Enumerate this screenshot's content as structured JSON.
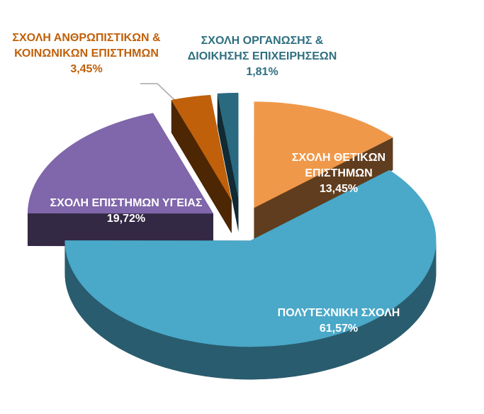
{
  "chart_data": {
    "type": "pie",
    "categories": [
      "ΣΧΟΛΗ ΘΕΤΙΚΩΝ ΕΠΙΣΤΗΜΩΝ",
      "ΠΟΛΥΤΕΧΝΙΚΗ ΣΧΟΛΗ",
      "ΣΧΟΛΗ ΕΠΙΣΤΗΜΩΝ ΥΓΕΙΑΣ",
      "ΣΧΟΛΗ ΑΝΘΡΩΠΙΣΤΙΚΩΝ & ΚΟΙΝΩΝΙΚΩΝ ΕΠΙΣΤΗΜΩΝ",
      "ΣΧΟΛΗ ΟΡΓΑΝΩΣΗΣ & ΔΙΟΙΚΗΣΗΣ ΕΠΙΧΕΙΡΗΣΕΩΝ"
    ],
    "values": [
      13.45,
      61.57,
      19.72,
      3.45,
      1.81
    ],
    "value_labels": [
      "13,45%",
      "61,57%",
      "19,72%",
      "3,45%",
      "1,81%"
    ],
    "colors": [
      "#f0984a",
      "#4aa8c8",
      "#8066aa",
      "#c0600a",
      "#2a6a80"
    ]
  }
}
